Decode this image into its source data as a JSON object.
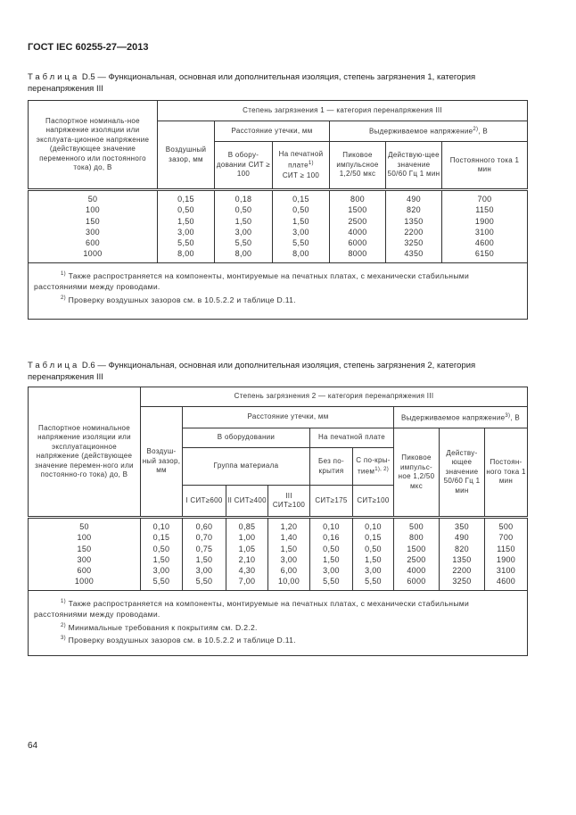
{
  "header": "ГОСТ IEC 60255-27—2013",
  "page_number": "64",
  "t5": {
    "cap_label": "Таблица",
    "cap_text": "D.5 — Функциональная, основная или дополнительная  изоляция, степень загрязнения 1, категория перенапряжения III",
    "h_first": "Паспортное номиналь-ное напряжение изоляции или эксплуата-ционное напряжение (действующее значение переменного или постоянного тока) до, В",
    "h_top": "Степень загрязнения 1 — категория перенапряжения III",
    "h_air": "Воздушный зазор, мм",
    "h_creep": "Расстояние утечки, мм",
    "h_withstand": "Выдерживаемое напряжение",
    "h_withstand_sup": "2)",
    "h_withstand_unit": ", В",
    "h_equip": "В обору-довании СИТ ≥ 100",
    "h_pcb": "На печатной плате",
    "h_pcb_sup": "1)",
    "h_pcb2": "СИТ ≥ 100",
    "h_peak": "Пиковое импульсное 1,2/50 мкс",
    "h_rms": "Действую-щее значение 50/60 Гц 1 мин",
    "h_dc": "Постоянного тока 1 мин",
    "columns": [
      [
        "50",
        "100",
        "150",
        "300",
        "600",
        "1000"
      ],
      [
        "0,15",
        "0,50",
        "1,50",
        "3,00",
        "5,50",
        "8,00"
      ],
      [
        "0,18",
        "0,50",
        "1,50",
        "3,00",
        "5,50",
        "8,00"
      ],
      [
        "0,15",
        "0,50",
        "1,50",
        "3,00",
        "5,50",
        "8,00"
      ],
      [
        "800",
        "1500",
        "2500",
        "4000",
        "6000",
        "8000"
      ],
      [
        "490",
        "820",
        "1350",
        "2200",
        "3250",
        "4350"
      ],
      [
        "700",
        "1150",
        "1900",
        "3100",
        "4600",
        "6150"
      ]
    ],
    "footnotes": [
      {
        "sup": "1)",
        "text": " Также распространяется на компоненты, монтируемые на печатных платах, с механически стабильными расстояниями между проводами."
      },
      {
        "sup": "2)",
        "text": " Проверку воздушных зазоров см. в 10.5.2.2 и таблице D.11."
      }
    ]
  },
  "t6": {
    "cap_label": "Таблица",
    "cap_text": "D.6 — Функциональная, основная или дополнительная  изоляция, степень загрязнения 2, категория перенапряжения III",
    "h_first": "Паспортное номинальное напряжение изоляции или эксплуатационное напряжение (действующее значение перемен-ного или постоянно-го тока) до, В",
    "h_top": "Степень загрязнения 2 — категория перенапряжения III",
    "h_air": "Воздуш-ный зазор, мм",
    "h_creep": "Расстояние утечки, мм",
    "h_withstand": "Выдерживаемое напряжение",
    "h_withstand_sup": "3)",
    "h_withstand_unit": ", В",
    "h_equip": "В оборудовании",
    "h_pcb": "На печатной плате",
    "h_group": "Группа материала",
    "h_nocoat": "Без по-крытия",
    "h_coat": "С по-кры-тием",
    "h_coat_sup": "1), 2)",
    "h_g1": "I СИТ≥600",
    "h_g2": "II СИТ≥400",
    "h_g3": "III СИТ≥100",
    "h_nc": "СИТ≥175",
    "h_c": "СИТ≥100",
    "h_peak": "Пиковое импульс-ное 1,2/50 мкс",
    "h_rms": "Действу-ющее значение 50/60 Гц 1 мин",
    "h_dc": "Постоян-ного тока 1 мин",
    "columns": [
      [
        "50",
        "100",
        "150",
        "300",
        "600",
        "1000"
      ],
      [
        "0,10",
        "0,15",
        "0,50",
        "1,50",
        "3,00",
        "5,50"
      ],
      [
        "0,60",
        "0,70",
        "0,75",
        "1,50",
        "3,00",
        "5,50"
      ],
      [
        "0,85",
        "1,00",
        "1,05",
        "2,10",
        "4,30",
        "7,00"
      ],
      [
        "1,20",
        "1,40",
        "1,50",
        "3,00",
        "6,00",
        "10,00"
      ],
      [
        "0,10",
        "0,16",
        "0,50",
        "1,50",
        "3,00",
        "5,50"
      ],
      [
        "0,10",
        "0,15",
        "0,50",
        "1,50",
        "3,00",
        "5,50"
      ],
      [
        "500",
        "800",
        "1500",
        "2500",
        "4000",
        "6000"
      ],
      [
        "350",
        "490",
        "820",
        "1350",
        "2200",
        "3250"
      ],
      [
        "500",
        "700",
        "1150",
        "1900",
        "3100",
        "4600"
      ]
    ],
    "footnotes": [
      {
        "sup": "1)",
        "text": " Также распространяется на компоненты, монтируемые на печатных платах, с механически стабильными расстояниями между проводами."
      },
      {
        "sup": "2)",
        "text": " Минимальные требования к покрытиям см. D.2.2."
      },
      {
        "sup": "3)",
        "text": " Проверку воздушных зазоров см. в 10.5.2.2 и таблице D.11."
      }
    ]
  }
}
